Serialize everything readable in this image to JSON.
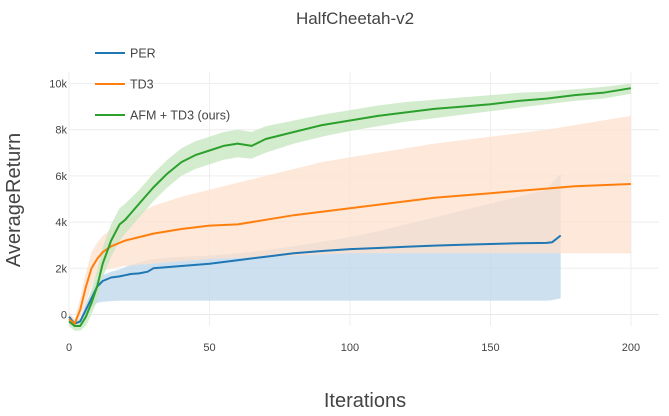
{
  "chart_data": {
    "type": "line",
    "title": "HalfCheetah-v2",
    "xlabel": "Iterations",
    "ylabel": "AverageReturn",
    "xlim": [
      0,
      210
    ],
    "ylim": [
      -500,
      10500
    ],
    "x_ticks": [
      0,
      50,
      100,
      150,
      200
    ],
    "x_tick_labels": [
      "0",
      "50",
      "100",
      "150",
      "200"
    ],
    "y_ticks": [
      0,
      2000,
      4000,
      6000,
      8000,
      10000
    ],
    "y_tick_labels": [
      "0",
      "2k",
      "4k",
      "6k",
      "8k",
      "10k"
    ],
    "grid": true,
    "legend_position": "top-left",
    "series": [
      {
        "name": "PER",
        "color": "#1f77b4",
        "band_color": "#bcd5ea",
        "x": [
          0,
          2,
          4,
          6,
          8,
          10,
          12,
          15,
          18,
          20,
          22,
          25,
          28,
          30,
          35,
          40,
          50,
          60,
          70,
          80,
          90,
          100,
          110,
          120,
          130,
          140,
          150,
          160,
          170,
          172,
          175
        ],
        "y": [
          -100,
          -400,
          -300,
          200,
          700,
          1200,
          1450,
          1600,
          1650,
          1700,
          1750,
          1780,
          1850,
          2000,
          2050,
          2100,
          2200,
          2350,
          2500,
          2650,
          2750,
          2830,
          2880,
          2930,
          2980,
          3020,
          3050,
          3080,
          3100,
          3130,
          3420
        ],
        "lower": [
          -300,
          -400,
          -300,
          -100,
          300,
          500,
          550,
          580,
          600,
          600,
          600,
          600,
          600,
          600,
          600,
          600,
          600,
          600,
          600,
          600,
          600,
          600,
          600,
          600,
          600,
          600,
          600,
          600,
          600,
          620,
          700
        ],
        "upper": [
          100,
          -300,
          -200,
          500,
          1000,
          1500,
          1700,
          1850,
          1950,
          2050,
          2150,
          2250,
          2350,
          2400,
          2450,
          2500,
          2550,
          2650,
          2780,
          2950,
          3150,
          3350,
          3600,
          3900,
          4200,
          4500,
          4800,
          5100,
          5400,
          5700,
          6100
        ]
      },
      {
        "name": "TD3",
        "color": "#ff7f0e",
        "band_color": "#fde0cc",
        "x": [
          0,
          2,
          4,
          6,
          8,
          10,
          12,
          15,
          20,
          25,
          30,
          40,
          50,
          60,
          70,
          80,
          90,
          100,
          110,
          120,
          130,
          140,
          150,
          160,
          170,
          180,
          190,
          200
        ],
        "y": [
          -200,
          -400,
          200,
          1200,
          2000,
          2400,
          2700,
          2950,
          3200,
          3350,
          3500,
          3700,
          3850,
          3900,
          4100,
          4300,
          4450,
          4600,
          4750,
          4900,
          5050,
          5150,
          5250,
          5350,
          5450,
          5550,
          5600,
          5650
        ],
        "lower": [
          -400,
          -500,
          -200,
          500,
          1200,
          1700,
          1900,
          2000,
          2100,
          2150,
          2200,
          2300,
          2400,
          2450,
          2500,
          2550,
          2600,
          2650,
          2650,
          2650,
          2650,
          2650,
          2650,
          2650,
          2650,
          2650,
          2650,
          2650
        ],
        "upper": [
          100,
          -200,
          700,
          1800,
          2700,
          3100,
          3400,
          3700,
          4100,
          4400,
          4700,
          5100,
          5400,
          5700,
          6000,
          6300,
          6600,
          6800,
          7000,
          7200,
          7400,
          7550,
          7700,
          7850,
          8000,
          8200,
          8400,
          8600
        ]
      },
      {
        "name": "AFM + TD3 (ours)",
        "color": "#2ca02c",
        "band_color": "#c5e5bd",
        "x": [
          0,
          2,
          4,
          6,
          8,
          10,
          12,
          15,
          18,
          20,
          25,
          30,
          35,
          40,
          45,
          50,
          55,
          60,
          65,
          70,
          80,
          90,
          100,
          110,
          120,
          130,
          140,
          150,
          160,
          170,
          180,
          190,
          200
        ],
        "y": [
          -300,
          -500,
          -500,
          -100,
          500,
          1200,
          2200,
          3200,
          3900,
          4100,
          4800,
          5500,
          6100,
          6600,
          6900,
          7100,
          7300,
          7400,
          7300,
          7600,
          7900,
          8200,
          8400,
          8600,
          8750,
          8900,
          9000,
          9100,
          9250,
          9350,
          9500,
          9600,
          9800
        ],
        "lower": [
          -500,
          -700,
          -700,
          -500,
          0,
          600,
          1600,
          2500,
          3200,
          3500,
          4200,
          4900,
          5500,
          6000,
          6300,
          6500,
          6700,
          6800,
          6750,
          7000,
          7400,
          7700,
          7950,
          8150,
          8350,
          8500,
          8650,
          8800,
          8950,
          9100,
          9250,
          9350,
          9550
        ],
        "upper": [
          -100,
          -300,
          -200,
          300,
          1100,
          1900,
          2900,
          3900,
          4600,
          4800,
          5400,
          6100,
          6700,
          7200,
          7500,
          7700,
          7900,
          8000,
          7900,
          8150,
          8400,
          8650,
          8850,
          9050,
          9200,
          9300,
          9400,
          9500,
          9600,
          9650,
          9750,
          9850,
          10000
        ]
      }
    ]
  }
}
